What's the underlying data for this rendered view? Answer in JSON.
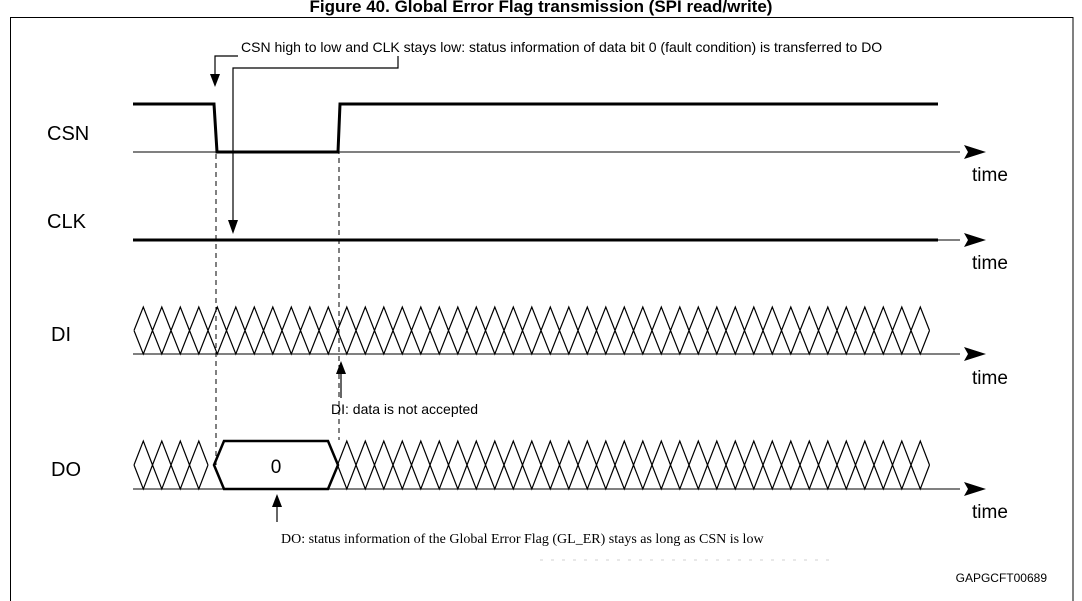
{
  "title": "Figure 40. Global Error Flag transmission (SPI read/write)",
  "signals": [
    {
      "label": "CSN",
      "axis_label": "time"
    },
    {
      "label": "CLK",
      "axis_label": "time"
    },
    {
      "label": "DI",
      "axis_label": "time"
    },
    {
      "label": "DO",
      "axis_label": "time"
    }
  ],
  "do_value": "0",
  "annotations": {
    "csn_note": "CSN high to low and CLK stays low: status information of data bit 0 (fault condition) is transferred to DO",
    "di_note": "DI: data is not accepted",
    "do_note": "DO: status information of the Global Error Flag (GL_ER) stays as long as CSN is low"
  },
  "figure_id": "GAPGCFT00689",
  "colors": {
    "line": "#000000",
    "dashed": "#000000",
    "background": "#ffffff"
  }
}
